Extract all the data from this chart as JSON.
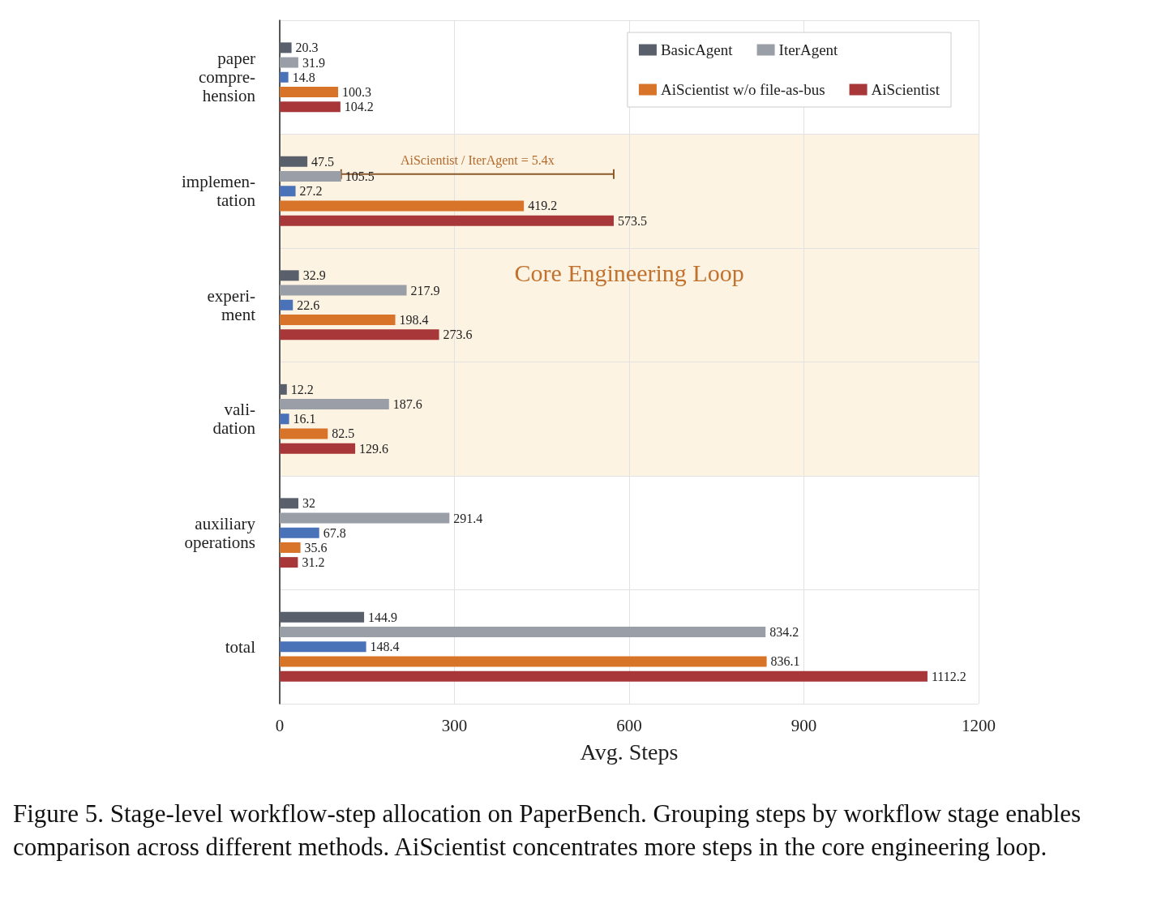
{
  "chart_data": {
    "type": "bar",
    "orientation": "horizontal",
    "xlabel": "Avg. Steps",
    "categories": [
      "paper\ncompre-\nhension",
      "implemen-\ntation",
      "experi-\nment",
      "vali-\ndation",
      "auxiliary\noperations",
      "total"
    ],
    "series": [
      {
        "name": "BasicAgent",
        "color": "#595f6b",
        "values": [
          20.3,
          47.5,
          32.9,
          12.2,
          32,
          144.9
        ]
      },
      {
        "name": "IterAgent",
        "color": "#9a9ea7",
        "values": [
          31.9,
          105.5,
          217.9,
          187.6,
          291.4,
          834.2
        ]
      },
      {
        "color": "#4a72b8",
        "values": [
          14.8,
          27.2,
          22.6,
          16.1,
          67.8,
          148.4
        ]
      },
      {
        "name": "AiScientist w/o file-as-bus",
        "color": "#d7742a",
        "values": [
          100.3,
          419.2,
          198.4,
          82.5,
          35.6,
          836.1
        ]
      },
      {
        "name": "AiScientist",
        "color": "#a8373a",
        "values": [
          104.2,
          573.5,
          273.6,
          129.6,
          31.2,
          1112.2
        ]
      }
    ],
    "xlim": [
      0,
      1200
    ],
    "xticks": [
      0,
      300,
      600,
      900,
      1200
    ],
    "grid": true,
    "legend": "top right",
    "data_labels": true,
    "bands": [
      {
        "axis": "y",
        "from": "implemen-\ntation",
        "to": "vali-\ndation",
        "label": "Core Engineering Loop",
        "color": "#fdf3e3"
      }
    ],
    "annotations": [
      "AiScientist / IterAgent = 5.4x",
      "Figure 5. Stage-level workflow-step allocation on PaperBench. Grouping steps by workflow stage enables comparison across different methods. AiScientist concentrates more steps in the core engineering loop."
    ]
  }
}
